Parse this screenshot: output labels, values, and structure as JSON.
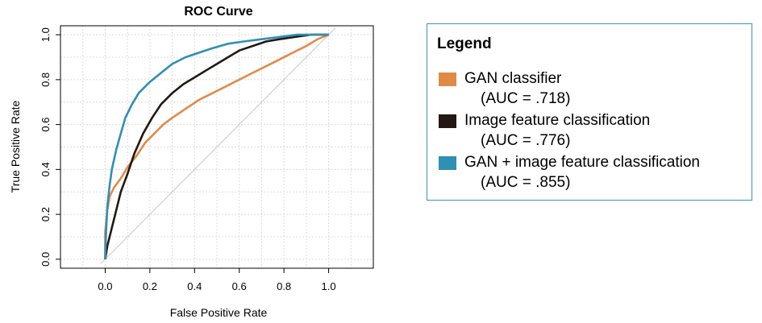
{
  "chart_data": {
    "type": "line",
    "title": "ROC Curve",
    "xlabel": "False Positive Rate",
    "ylabel": "True Positive Rate",
    "xlim": [
      -0.2,
      1.2
    ],
    "ylim": [
      0.0,
      1.0
    ],
    "x_ticks": [
      "0.0",
      "0.2",
      "0.4",
      "0.6",
      "0.8",
      "1.0"
    ],
    "y_ticks": [
      "0.0",
      "0.2",
      "0.4",
      "0.6",
      "0.8",
      "1.0"
    ],
    "grid": true,
    "diagonal_reference": true,
    "legend_placement": "right",
    "series": [
      {
        "name": "GAN classifier",
        "auc_label": "(AUC = .718)",
        "color": "#e08a46",
        "x": [
          0.0,
          0.0,
          0.01,
          0.02,
          0.04,
          0.07,
          0.1,
          0.14,
          0.18,
          0.22,
          0.26,
          0.3,
          0.36,
          0.42,
          0.48,
          0.54,
          0.6,
          0.66,
          0.72,
          0.78,
          0.84,
          0.9,
          0.95,
          1.0
        ],
        "y": [
          0.0,
          0.12,
          0.22,
          0.28,
          0.32,
          0.36,
          0.41,
          0.46,
          0.52,
          0.56,
          0.6,
          0.63,
          0.67,
          0.71,
          0.74,
          0.77,
          0.8,
          0.83,
          0.86,
          0.89,
          0.92,
          0.95,
          0.98,
          1.0
        ]
      },
      {
        "name": "Image feature classification",
        "auc_label": "(AUC = .776)",
        "color": "#231814",
        "x": [
          0.0,
          0.01,
          0.03,
          0.05,
          0.07,
          0.1,
          0.13,
          0.17,
          0.21,
          0.25,
          0.3,
          0.35,
          0.4,
          0.45,
          0.5,
          0.55,
          0.6,
          0.66,
          0.72,
          0.78,
          0.85,
          0.92,
          1.0
        ],
        "y": [
          0.0,
          0.06,
          0.14,
          0.22,
          0.3,
          0.38,
          0.47,
          0.56,
          0.63,
          0.69,
          0.74,
          0.78,
          0.81,
          0.84,
          0.87,
          0.9,
          0.93,
          0.95,
          0.97,
          0.98,
          0.99,
          1.0,
          1.0
        ]
      },
      {
        "name": "GAN + image feature classification",
        "auc_label": "(AUC = .855)",
        "color": "#2f8fb4",
        "x": [
          0.0,
          0.005,
          0.01,
          0.02,
          0.03,
          0.05,
          0.07,
          0.09,
          0.12,
          0.15,
          0.2,
          0.25,
          0.3,
          0.36,
          0.42,
          0.48,
          0.55,
          0.62,
          0.7,
          0.78,
          0.86,
          0.93,
          1.0
        ],
        "y": [
          0.0,
          0.14,
          0.24,
          0.33,
          0.4,
          0.49,
          0.56,
          0.63,
          0.69,
          0.74,
          0.79,
          0.83,
          0.87,
          0.9,
          0.92,
          0.94,
          0.96,
          0.97,
          0.98,
          0.99,
          1.0,
          1.0,
          1.0
        ]
      }
    ]
  },
  "legend": {
    "title": "Legend"
  }
}
